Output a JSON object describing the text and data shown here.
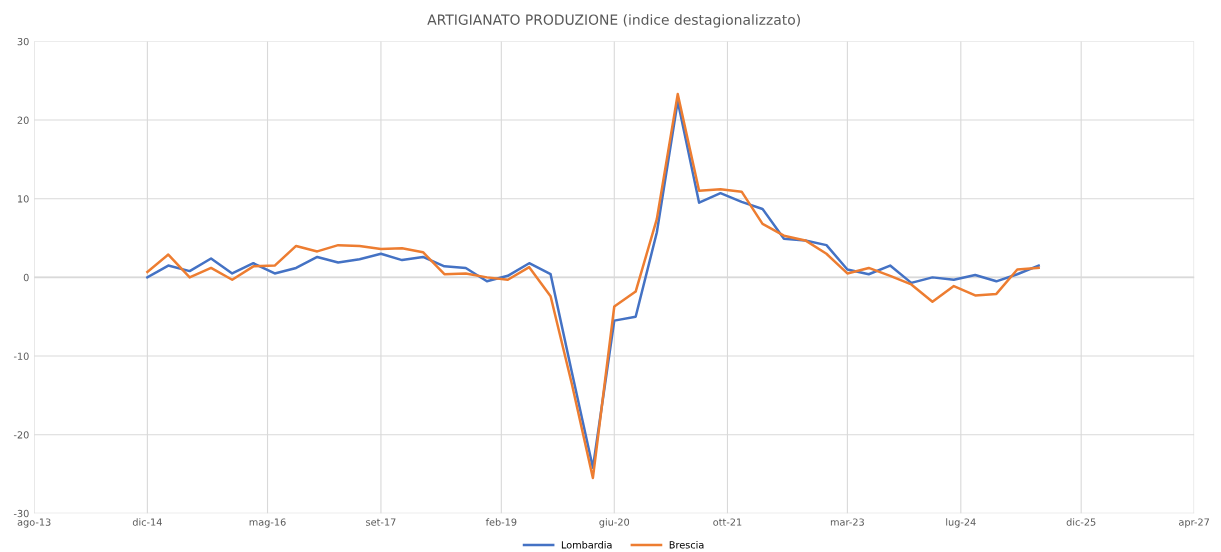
{
  "chart_data": {
    "type": "line",
    "title": "ARTIGIANATO PRODUZIONE (indice destagionalizzato)",
    "x": [
      "2014-12",
      "2015-03",
      "2015-06",
      "2015-09",
      "2015-12",
      "2016-03",
      "2016-06",
      "2016-09",
      "2016-12",
      "2017-03",
      "2017-06",
      "2017-09",
      "2017-12",
      "2018-03",
      "2018-06",
      "2018-09",
      "2018-12",
      "2019-03",
      "2019-06",
      "2019-09",
      "2019-12",
      "2020-03",
      "2020-06",
      "2020-09",
      "2020-12",
      "2021-03",
      "2021-06",
      "2021-09",
      "2021-12",
      "2022-03",
      "2022-06",
      "2022-09",
      "2022-12",
      "2023-03",
      "2023-06",
      "2023-09",
      "2023-12",
      "2024-03",
      "2024-06",
      "2024-09",
      "2024-12",
      "2025-03",
      "2025-06"
    ],
    "series": [
      {
        "name": "Lombardia",
        "color": "#4472c4",
        "values": [
          0.0,
          1.5,
          0.8,
          2.4,
          0.5,
          1.8,
          0.5,
          1.2,
          2.6,
          1.9,
          2.3,
          3.0,
          2.2,
          2.6,
          1.4,
          1.2,
          -0.5,
          0.2,
          1.8,
          0.4,
          -12,
          -24.2,
          -5.5,
          -5.0,
          5.7,
          22.4,
          9.5,
          10.7,
          9.6,
          8.7,
          4.9,
          4.7,
          4.1,
          1.0,
          0.4,
          1.5,
          -0.7,
          0.0,
          -0.3,
          0.3,
          -0.5,
          0.4,
          1.5
        ]
      },
      {
        "name": "Brescia",
        "color": "#ed7d31",
        "values": [
          0.7,
          2.9,
          0.0,
          1.2,
          -0.3,
          1.4,
          1.5,
          4.0,
          3.3,
          4.1,
          4.0,
          3.6,
          3.7,
          3.2,
          0.4,
          0.5,
          0.0,
          -0.3,
          1.3,
          -2.4,
          -13.5,
          -25.5,
          -3.7,
          -1.8,
          7.4,
          23.3,
          11.0,
          11.2,
          10.9,
          6.8,
          5.3,
          4.7,
          3.0,
          0.5,
          1.2,
          0.2,
          -0.9,
          -3.1,
          -1.1,
          -2.3,
          -2.1,
          1.0,
          1.2
        ]
      }
    ],
    "xlim": [
      "2013-08",
      "2027-04"
    ],
    "xticks": [
      {
        "value": "2013-08",
        "label": "ago-13"
      },
      {
        "value": "2014-12",
        "label": "dic-14"
      },
      {
        "value": "2016-05",
        "label": "mag-16"
      },
      {
        "value": "2017-09",
        "label": "set-17"
      },
      {
        "value": "2019-02",
        "label": "feb-19"
      },
      {
        "value": "2020-06",
        "label": "giu-20"
      },
      {
        "value": "2021-10",
        "label": "ott-21"
      },
      {
        "value": "2023-03",
        "label": "mar-23"
      },
      {
        "value": "2024-07",
        "label": "lug-24"
      },
      {
        "value": "2025-12",
        "label": "dic-25"
      },
      {
        "value": "2027-04",
        "label": "apr-27"
      }
    ],
    "ylim": [
      -30,
      30
    ],
    "yticks": [
      -30,
      -20,
      -10,
      0,
      10,
      20,
      30
    ],
    "grid": true,
    "legend": "bottom",
    "marker": "none",
    "line_style": "solid"
  }
}
